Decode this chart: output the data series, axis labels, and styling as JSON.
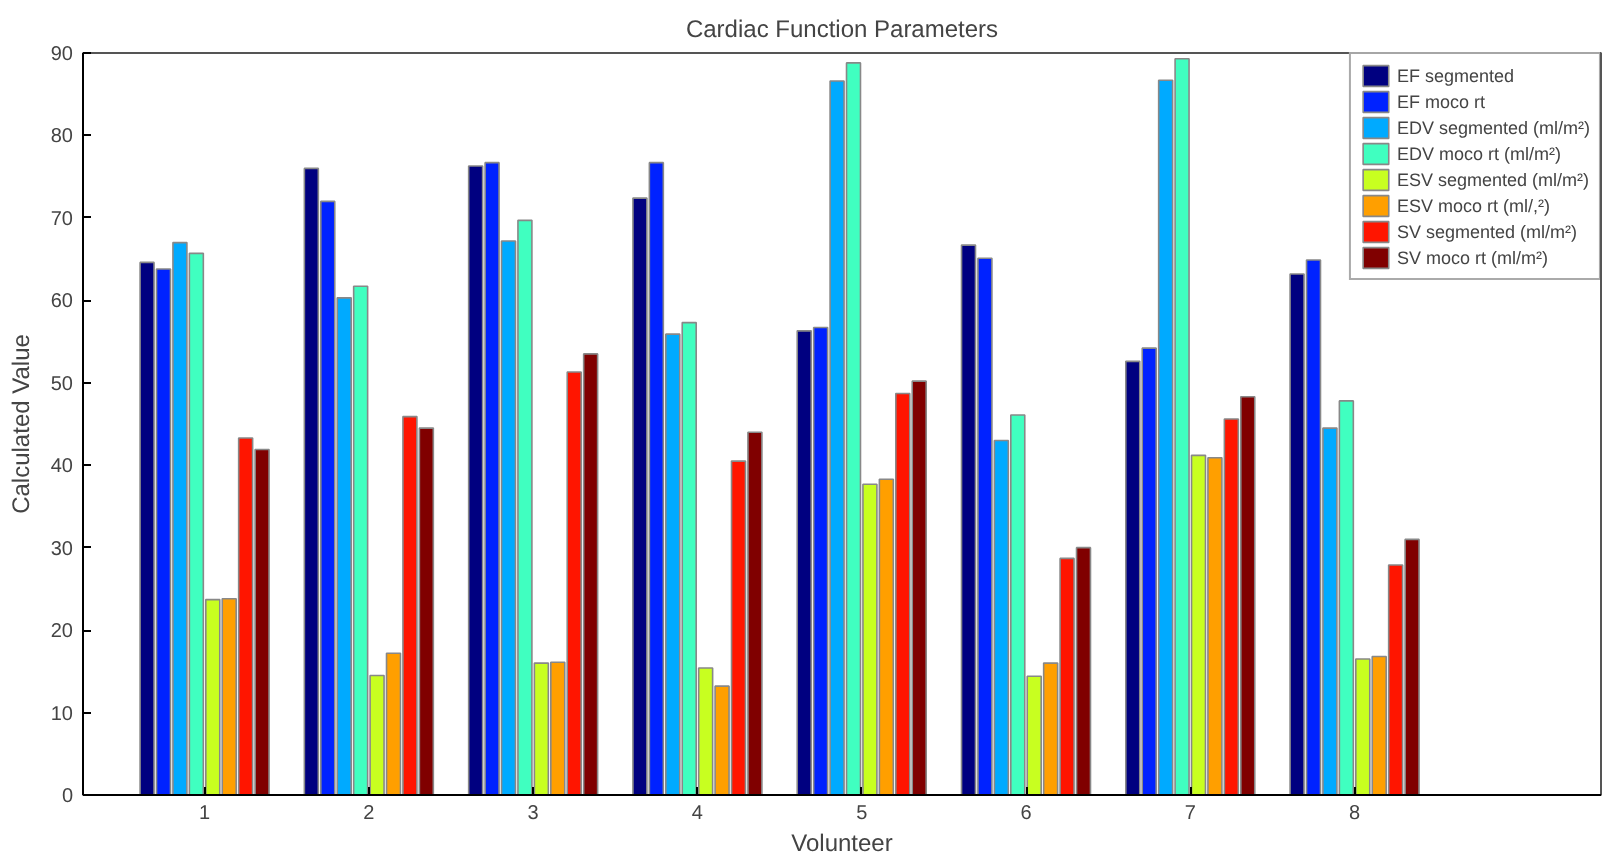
{
  "chart_data": {
    "type": "bar",
    "title": "Cardiac Function Parameters",
    "xlabel": "Volunteer",
    "ylabel": "Calculated Value",
    "categories": [
      "1",
      "2",
      "3",
      "4",
      "5",
      "6",
      "7",
      "8"
    ],
    "ylim": [
      0,
      90
    ],
    "yticks": [
      0,
      10,
      20,
      30,
      40,
      50,
      60,
      70,
      80,
      90
    ],
    "grid": false,
    "legend": "top right",
    "series": [
      {
        "name": "EF segmented",
        "color": "#000080",
        "values": [
          64.6,
          76,
          76.3,
          72.4,
          56.3,
          66.7,
          52.6,
          63.2
        ]
      },
      {
        "name": "EF moco rt",
        "color": "#0022ff",
        "values": [
          63.8,
          72,
          76.7,
          76.7,
          56.7,
          65.1,
          54.2,
          64.9
        ]
      },
      {
        "name": "EDV segmented (ml/m²)",
        "color": "#00aaff",
        "values": [
          67,
          60.3,
          67.2,
          55.9,
          86.6,
          43,
          86.7,
          44.5
        ]
      },
      {
        "name": "EDV moco rt (ml/m²)",
        "color": "#40ffc0",
        "values": [
          65.7,
          61.7,
          69.7,
          57.3,
          88.8,
          46.1,
          89.3,
          47.8
        ]
      },
      {
        "name": "ESV segmented (ml/m²)",
        "color": "#c8ff20",
        "values": [
          23.7,
          14.5,
          16,
          15.4,
          37.7,
          14.4,
          41.2,
          16.5
        ]
      },
      {
        "name": "ESV moco rt (ml/,²)",
        "color": "#ff9f00",
        "values": [
          23.8,
          17.2,
          16.1,
          13.2,
          38.3,
          16,
          40.9,
          16.8
        ]
      },
      {
        "name": "SV segmented (ml/m²)",
        "color": "#ff1500",
        "values": [
          43.3,
          45.9,
          51.3,
          40.5,
          48.7,
          28.7,
          45.6,
          27.9
        ]
      },
      {
        "name": "SV moco rt (ml/m²)",
        "color": "#800000",
        "values": [
          41.9,
          44.5,
          53.5,
          44,
          50.2,
          30,
          48.3,
          31
        ]
      }
    ]
  }
}
